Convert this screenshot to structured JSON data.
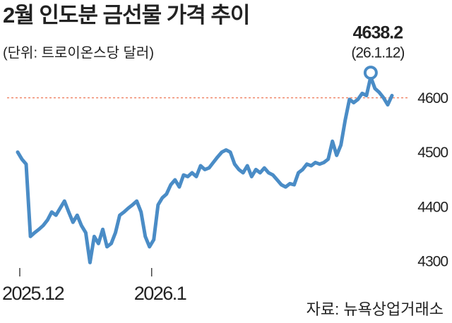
{
  "chart_data": {
    "type": "line",
    "title": "2월 인도분 금선물 가격 추이",
    "subtitle": "(단위: 트로이온스당 달러)",
    "source": "자료: 뉴욕상업거래소",
    "categories": [
      "2025.12",
      null,
      null,
      null,
      null,
      null,
      null,
      null,
      null,
      null,
      null,
      null,
      null,
      null,
      null,
      null,
      null,
      null,
      null,
      null,
      null,
      null,
      null,
      null,
      null,
      null,
      null,
      null,
      null,
      null,
      null,
      "2026.1",
      null,
      null,
      null,
      null,
      null,
      null,
      null,
      null,
      null,
      null,
      null,
      null,
      null,
      null,
      null,
      null,
      null,
      null,
      null,
      null,
      null,
      null,
      null,
      null,
      null,
      null,
      null,
      null,
      null,
      null,
      null,
      null,
      null,
      null,
      null,
      null,
      null,
      null,
      null,
      null,
      null,
      null,
      null,
      null,
      null,
      null,
      null,
      null,
      null,
      null,
      null,
      null,
      null,
      null,
      null,
      null,
      null
    ],
    "series": [
      {
        "name": "금선물",
        "color": "#4a8cc6",
        "values": [
          4500,
          4487,
          4478,
          4345,
          4352,
          4358,
          4365,
          4375,
          4390,
          4384,
          4397,
          4410,
          4390,
          4371,
          4384,
          4365,
          4352,
          4297,
          4345,
          4332,
          4358,
          4326,
          4332,
          4352,
          4384,
          4390,
          4397,
          4403,
          4410,
          4390,
          4345,
          4326,
          4339,
          4403,
          4416,
          4423,
          4440,
          4449,
          4436,
          4458,
          4455,
          4462,
          4455,
          4475,
          4468,
          4471,
          4481,
          4491,
          4500,
          4504,
          4500,
          4478,
          4468,
          4462,
          4475,
          4455,
          4468,
          4462,
          4471,
          4462,
          4458,
          4449,
          4440,
          4436,
          4442,
          4440,
          4462,
          4468,
          4478,
          4475,
          4481,
          4478,
          4481,
          4487,
          4520,
          4494,
          4513,
          4559,
          4597,
          4591,
          4597,
          4608,
          4604,
          4638.2,
          4617,
          4610,
          4600,
          4587,
          4604
        ]
      }
    ],
    "peak_index": 83,
    "peak_date": "(26.1.12)",
    "reference_line": 4600,
    "reference_color": "#f0896b",
    "ylim": [
      4287,
      4650
    ],
    "yticks": [
      4300,
      4400,
      4500,
      4600
    ]
  }
}
